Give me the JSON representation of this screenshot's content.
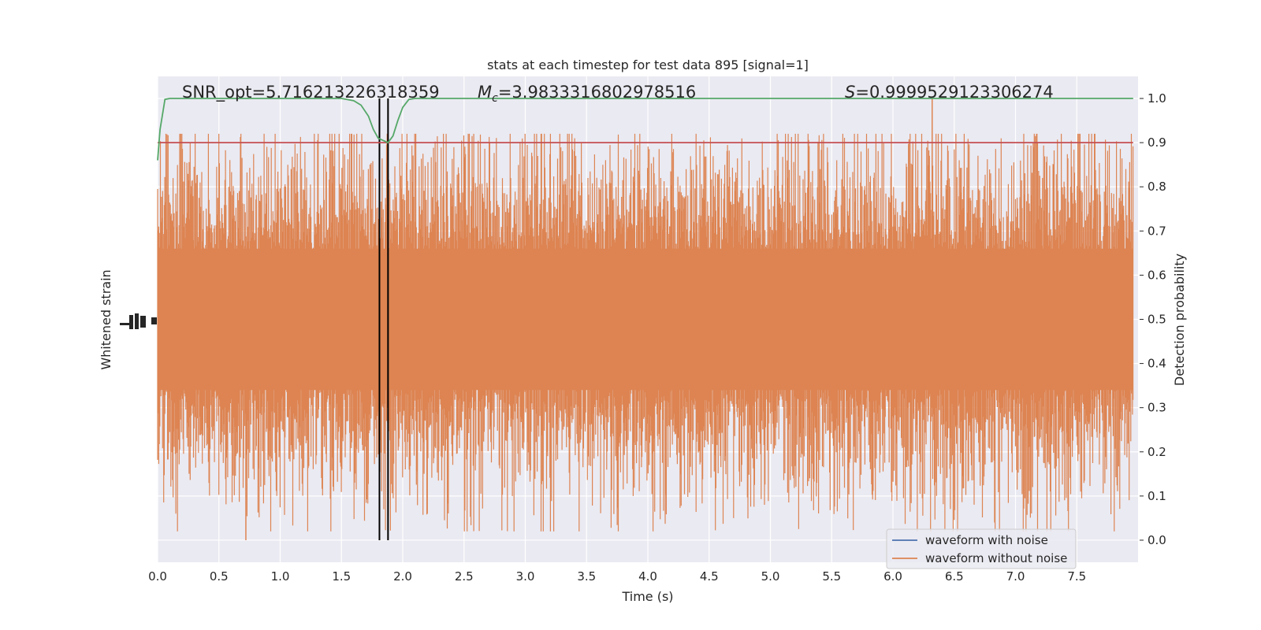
{
  "chart_data": {
    "type": "line",
    "title": "stats at each timestep for test data 895 [signal=1]",
    "xlabel": "Time (s)",
    "ylabel_left": "Whitened strain",
    "ylabel_right": "Detection probability",
    "xlim": [
      0.0,
      8.0
    ],
    "ylim_right": [
      -0.05,
      1.05
    ],
    "x_ticks": [
      "0.0",
      "0.5",
      "1.0",
      "1.5",
      "2.0",
      "2.5",
      "3.0",
      "3.5",
      "4.0",
      "4.5",
      "5.0",
      "5.5",
      "6.0",
      "6.5",
      "7.0",
      "7.5"
    ],
    "y_ticks_right": [
      "0.0",
      "0.1",
      "0.2",
      "0.3",
      "0.4",
      "0.5",
      "0.6",
      "0.7",
      "0.8",
      "0.9",
      "1.0"
    ],
    "grid": true,
    "legend_placement": "lower-right",
    "annotations": {
      "snr": "SNR_opt=5.716213226318359",
      "mc_symbol": "M",
      "mc_sub": "c",
      "mc_value": "=3.9833316802978516",
      "s_symbol": "S",
      "s_value": "=0.9999529123306274"
    },
    "series": [
      {
        "name": "waveform with noise",
        "color": "#4c72b0"
      },
      {
        "name": "waveform without noise",
        "color": "#dd8452"
      }
    ],
    "strain_band": {
      "center": 0.5,
      "typical_halfwidth": 0.16,
      "max": 1.0,
      "min": 0.0,
      "t_end": 7.96
    },
    "detection_probability": {
      "color": "#55a868",
      "x": [
        0.0,
        0.02,
        0.06,
        0.1,
        0.2,
        0.5,
        1.0,
        1.5,
        1.6,
        1.66,
        1.72,
        1.76,
        1.8,
        1.84,
        1.88,
        1.92,
        1.96,
        2.0,
        2.05,
        2.1,
        2.3,
        3.0,
        4.0,
        5.0,
        6.0,
        7.0,
        7.96
      ],
      "y": [
        0.86,
        0.93,
        0.998,
        1.0,
        1.0,
        1.0,
        1.0,
        1.0,
        0.995,
        0.985,
        0.96,
        0.93,
        0.91,
        0.905,
        0.9,
        0.915,
        0.95,
        0.98,
        0.998,
        1.0,
        1.0,
        1.0,
        1.0,
        1.0,
        1.0,
        1.0,
        1.0
      ]
    },
    "threshold": {
      "y": 0.9,
      "color": "#c44e52"
    },
    "vertical_markers": [
      1.81,
      1.88
    ]
  }
}
